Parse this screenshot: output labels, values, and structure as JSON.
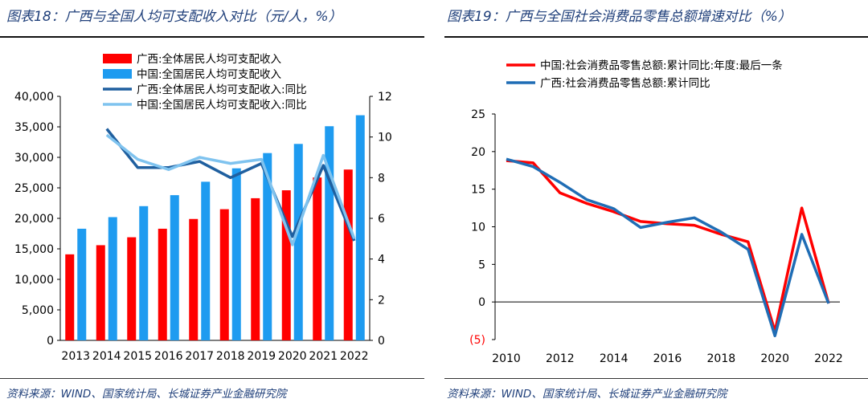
{
  "left_panel": {
    "title": "图表18：广西与全国人均可支配收入对比（元/人，%）",
    "source": "资料来源：WIND、国家统计局、长城证券产业金融研究院"
  },
  "right_panel": {
    "title": "图表19：广西与全国社会消费品零售总额增速对比（%）",
    "source": "资料来源：WIND、国家统计局、长城证券产业金融研究院"
  },
  "colors": {
    "red": "#ff0000",
    "blue": "#1e9bf0",
    "navy": "#1f5f9f",
    "light_blue": "#7fc3ef",
    "title": "#1f3f7a"
  },
  "chart_data": [
    {
      "type": "bar",
      "categories": [
        "2013",
        "2014",
        "2015",
        "2016",
        "2017",
        "2018",
        "2019",
        "2020",
        "2021",
        "2022"
      ],
      "series": [
        {
          "name": "广西:全体居民人均可支配收入",
          "kind": "bar",
          "axis": "left",
          "color": "#ff0000",
          "values": [
            14100,
            15600,
            16900,
            18300,
            19900,
            21500,
            23300,
            24600,
            26700,
            28000
          ]
        },
        {
          "name": "中国:全国居民人均可支配收入",
          "kind": "bar",
          "axis": "left",
          "color": "#1e9bf0",
          "values": [
            18300,
            20200,
            22000,
            23800,
            26000,
            28200,
            30700,
            32200,
            35100,
            36900
          ]
        },
        {
          "name": "广西:全体居民人均可支配收入:同比",
          "kind": "line",
          "axis": "right",
          "color": "#1f5f9f",
          "values": [
            null,
            10.4,
            8.5,
            8.5,
            8.8,
            8.0,
            8.7,
            5.1,
            8.6,
            4.9
          ]
        },
        {
          "name": "中国:全国居民人均可支配收入:同比",
          "kind": "line",
          "axis": "right",
          "color": "#7fc3ef",
          "values": [
            null,
            10.1,
            8.9,
            8.4,
            9.0,
            8.7,
            8.9,
            4.7,
            9.1,
            5.0
          ]
        }
      ],
      "left_axis": {
        "range": [
          0,
          40000
        ],
        "ticks": [
          "0",
          "5,000",
          "10,000",
          "15,000",
          "20,000",
          "25,000",
          "30,000",
          "35,000",
          "40,000"
        ]
      },
      "right_axis": {
        "range": [
          0,
          12
        ],
        "ticks": [
          "0",
          "2",
          "4",
          "6",
          "8",
          "10",
          "12"
        ]
      },
      "legend_position": "top-left",
      "grid": false
    },
    {
      "type": "line",
      "x": [
        2010,
        2011,
        2012,
        2013,
        2014,
        2015,
        2016,
        2017,
        2018,
        2019,
        2020,
        2021,
        2022
      ],
      "series": [
        {
          "name": "中国:社会消费品零售总额:累计同比:年度:最后一条",
          "color": "#ff0000",
          "values": [
            18.8,
            18.5,
            14.5,
            13.1,
            12.0,
            10.7,
            10.4,
            10.2,
            9.0,
            8.0,
            -3.9,
            12.5,
            -0.2
          ]
        },
        {
          "name": "广西:社会消费品零售总额:累计同比",
          "color": "#1f6db5",
          "values": [
            19.0,
            18.0,
            15.9,
            13.6,
            12.4,
            9.9,
            10.6,
            11.2,
            9.3,
            7.0,
            -4.5,
            9.0,
            -0.2
          ]
        }
      ],
      "y_axis": {
        "range": [
          -5,
          25
        ],
        "ticks": [
          "(5)",
          "0",
          "5",
          "10",
          "15",
          "20",
          "25"
        ]
      },
      "x_ticks": [
        "2010",
        "2012",
        "2014",
        "2016",
        "2018",
        "2020",
        "2022"
      ],
      "legend_position": "top",
      "grid": false
    }
  ]
}
